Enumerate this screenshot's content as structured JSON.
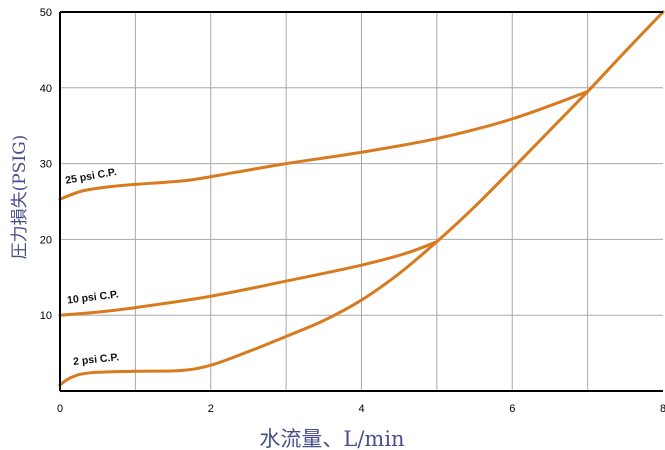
{
  "chart_data": {
    "type": "line",
    "xlabel": "水流量、L/min",
    "ylabel": "圧力損失(PSIG)",
    "xlim": [
      0,
      8
    ],
    "ylim": [
      0,
      50
    ],
    "x_ticks": [
      "0",
      "2",
      "4",
      "6",
      "8"
    ],
    "y_ticks": [
      "10",
      "20",
      "30",
      "40",
      "50"
    ],
    "grid": true,
    "line_color": "#d87a1e",
    "annotations": [
      "25 psi C.P.",
      "10 psi C.P.",
      "2 psi C.P."
    ],
    "series": [
      {
        "points": [
          [
            0,
            25.3
          ],
          [
            0.3,
            26.4
          ],
          [
            0.7,
            27.0
          ],
          [
            1.2,
            27.4
          ],
          [
            1.7,
            27.8
          ],
          [
            2.3,
            28.8
          ],
          [
            3.0,
            30.0
          ],
          [
            4.0,
            31.5
          ],
          [
            5.0,
            33.3
          ],
          [
            6.0,
            35.9
          ],
          [
            7.0,
            39.5
          ]
        ]
      },
      {
        "points": [
          [
            0,
            10.0
          ],
          [
            0.5,
            10.4
          ],
          [
            1.0,
            11.0
          ],
          [
            2.0,
            12.5
          ],
          [
            3.0,
            14.5
          ],
          [
            4.0,
            16.6
          ],
          [
            4.6,
            18.2
          ],
          [
            5.0,
            19.7
          ]
        ]
      },
      {
        "points": [
          [
            0,
            0.8
          ],
          [
            0.15,
            1.8
          ],
          [
            0.4,
            2.4
          ],
          [
            1.0,
            2.6
          ],
          [
            1.6,
            2.7
          ],
          [
            2.0,
            3.4
          ],
          [
            2.5,
            5.2
          ],
          [
            3.0,
            7.2
          ],
          [
            3.5,
            9.3
          ],
          [
            4.0,
            12.0
          ],
          [
            4.5,
            15.5
          ],
          [
            5.0,
            19.7
          ],
          [
            5.5,
            24.3
          ],
          [
            6.0,
            29.3
          ],
          [
            6.5,
            34.4
          ],
          [
            7.0,
            39.5
          ],
          [
            7.5,
            44.8
          ],
          [
            8.0,
            50.0
          ]
        ]
      }
    ]
  }
}
